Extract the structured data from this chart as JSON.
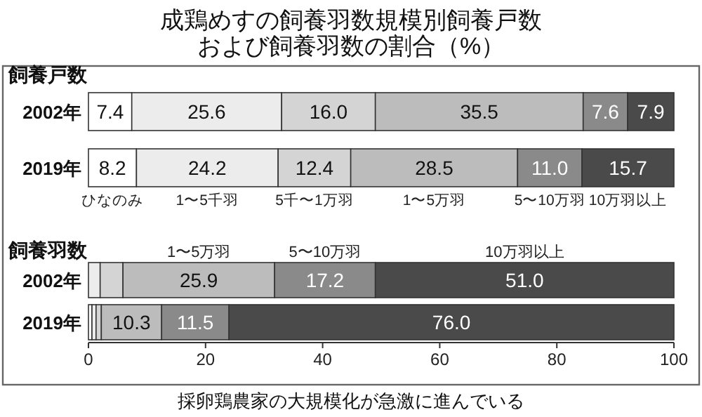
{
  "chart_data": [
    {
      "type": "bar",
      "orientation": "horizontal",
      "stacked": true,
      "title": "成鶏めすの飼養羽数規模別飼養戸数および飼養羽数の割合（%）",
      "ylabel": "飼養戸数",
      "categories": [
        "2002年",
        "2019年"
      ],
      "series": [
        {
          "name": "ひなのみ",
          "color": "#ffffff",
          "values": [
            7.4,
            8.2
          ],
          "value_labels": [
            "7.4",
            "8.2"
          ]
        },
        {
          "name": "1〜5千羽",
          "color": "#ececec",
          "values": [
            25.6,
            24.2
          ],
          "value_labels": [
            "25.6",
            "24.2"
          ]
        },
        {
          "name": "5千〜1万羽",
          "color": "#d4d4d4",
          "values": [
            16.0,
            12.4
          ],
          "value_labels": [
            "16.0",
            "12.4"
          ]
        },
        {
          "name": "1〜5万羽",
          "color": "#bcbcbc",
          "values": [
            35.5,
            28.5
          ],
          "value_labels": [
            "35.5",
            "28.5"
          ]
        },
        {
          "name": "5〜10万羽",
          "color": "#8a8a8a",
          "values": [
            7.6,
            11.0
          ],
          "value_labels": [
            "7.6",
            "11.0"
          ]
        },
        {
          "name": "10万羽以上",
          "color": "#4a4a4a",
          "values": [
            7.9,
            15.7
          ],
          "value_labels": [
            "7.9",
            "15.7"
          ]
        }
      ]
    },
    {
      "type": "bar",
      "orientation": "horizontal",
      "stacked": true,
      "ylabel": "飼養羽数",
      "categories": [
        "2002年",
        "2019年"
      ],
      "xlim": [
        0,
        100
      ],
      "xticks": [
        0,
        20,
        40,
        60,
        80,
        100
      ],
      "annotations": [
        "採卵鶏農家の大規模化が急激に進んでいる"
      ],
      "series": [
        {
          "color": "#ffffff",
          "values": [
            null,
            0.6
          ]
        },
        {
          "color": "#ececec",
          "values": [
            2.0,
            0.7
          ]
        },
        {
          "color": "#d4d4d4",
          "values": [
            3.9,
            0.9
          ]
        },
        {
          "name": "1〜5万羽",
          "color": "#bcbcbc",
          "values": [
            25.9,
            10.3
          ],
          "value_labels": [
            "25.9",
            "10.3"
          ]
        },
        {
          "name": "5〜10万羽",
          "color": "#8a8a8a",
          "values": [
            17.2,
            11.5
          ],
          "value_labels": [
            "17.2",
            "11.5"
          ]
        },
        {
          "name": "10万羽以上",
          "color": "#4a4a4a",
          "values": [
            51.0,
            76.0
          ],
          "value_labels": [
            "51.0",
            "76.0"
          ]
        }
      ]
    }
  ]
}
